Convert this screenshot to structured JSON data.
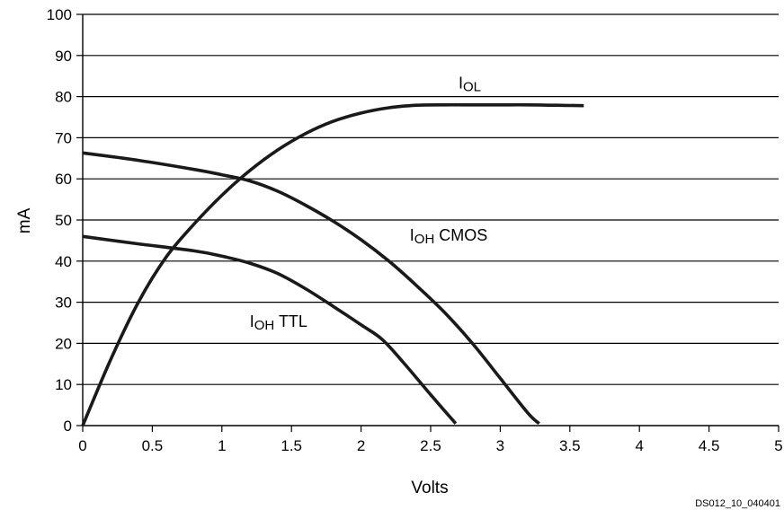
{
  "chart_data": {
    "type": "line",
    "title": "",
    "xlabel": "Volts",
    "ylabel": "mA",
    "xlim": [
      0,
      5
    ],
    "ylim": [
      0,
      100
    ],
    "x_ticks": [
      "0",
      "0.5",
      "1",
      "1.5",
      "2",
      "2.5",
      "3",
      "3.5",
      "4",
      "4.5",
      "5"
    ],
    "y_ticks": [
      "0",
      "10",
      "20",
      "30",
      "40",
      "50",
      "60",
      "70",
      "80",
      "90",
      "100"
    ],
    "grid": "horizontal",
    "series": [
      {
        "name": "IOL",
        "label_main": "I",
        "label_sub": "OL",
        "label_suffix": "",
        "points": [
          [
            0,
            0
          ],
          [
            0.2,
            16
          ],
          [
            0.4,
            30
          ],
          [
            0.6,
            41
          ],
          [
            0.8,
            49
          ],
          [
            1.0,
            56
          ],
          [
            1.2,
            62
          ],
          [
            1.4,
            67
          ],
          [
            1.6,
            71
          ],
          [
            1.8,
            74
          ],
          [
            2.0,
            76
          ],
          [
            2.2,
            77.3
          ],
          [
            2.4,
            77.9
          ],
          [
            2.6,
            78
          ],
          [
            2.8,
            78
          ],
          [
            3.0,
            78
          ],
          [
            3.2,
            78
          ],
          [
            3.4,
            77.9
          ],
          [
            3.6,
            77.8
          ]
        ]
      },
      {
        "name": "IOH CMOS",
        "label_main": "I",
        "label_sub": "OH",
        "label_suffix": " CMOS",
        "points": [
          [
            0,
            66.3
          ],
          [
            0.4,
            64.5
          ],
          [
            0.8,
            62.3
          ],
          [
            1.0,
            61
          ],
          [
            1.2,
            59.5
          ],
          [
            1.4,
            57
          ],
          [
            1.6,
            53.6
          ],
          [
            1.8,
            49.7
          ],
          [
            2.0,
            45.2
          ],
          [
            2.2,
            40
          ],
          [
            2.4,
            34
          ],
          [
            2.6,
            27.5
          ],
          [
            2.8,
            20
          ],
          [
            3.0,
            11.5
          ],
          [
            3.2,
            3
          ],
          [
            3.28,
            0.5
          ]
        ]
      },
      {
        "name": "IOH TTL",
        "label_main": "I",
        "label_sub": "OH",
        "label_suffix": " TTL",
        "points": [
          [
            0,
            46
          ],
          [
            0.4,
            44.2
          ],
          [
            0.8,
            42.5
          ],
          [
            1.0,
            41.2
          ],
          [
            1.2,
            39.5
          ],
          [
            1.4,
            37
          ],
          [
            1.6,
            33.3
          ],
          [
            1.8,
            29
          ],
          [
            2.0,
            24.5
          ],
          [
            2.15,
            21
          ],
          [
            2.3,
            15.5
          ],
          [
            2.5,
            7.5
          ],
          [
            2.68,
            0.5
          ]
        ]
      }
    ],
    "annotations": {
      "IOL": {
        "x": 2.7,
        "y": 82
      },
      "IOH CMOS": {
        "x": 2.35,
        "y": 45
      },
      "IOH TTL": {
        "x": 1.2,
        "y": 24
      }
    }
  },
  "footer": {
    "doc_id": "DS012_10_040401"
  }
}
